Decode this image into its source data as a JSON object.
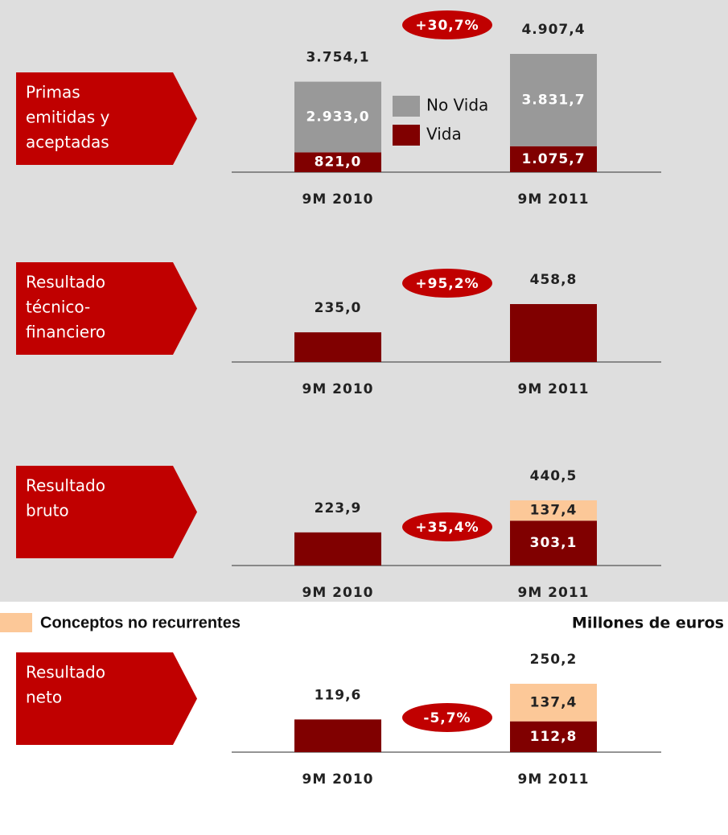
{
  "chart_data": [
    {
      "type": "bar",
      "stacked": true,
      "title": [
        "Primas",
        "emitidas y",
        "aceptadas"
      ],
      "categories": [
        "9M 2010",
        "9M 2011"
      ],
      "series": [
        {
          "name": "No Vida",
          "color": "#999999",
          "values": [
            2933.0,
            3831.7
          ],
          "value_labels": [
            "2.933,0",
            "3.831,7"
          ]
        },
        {
          "name": "Vida",
          "color": "#800000",
          "values": [
            821.0,
            1075.7
          ],
          "value_labels": [
            "821,0",
            "1.075,7"
          ]
        }
      ],
      "totals": [
        3754.1,
        4907.4
      ],
      "total_labels": [
        "3.754,1",
        "4.907,4"
      ],
      "change": 30.7,
      "change_label": "+30,7%"
    },
    {
      "type": "bar",
      "stacked": true,
      "title": [
        "Resultado",
        "técnico-",
        "financiero"
      ],
      "categories": [
        "9M 2010",
        "9M 2011"
      ],
      "series": [
        {
          "color": "#800000",
          "values": [
            235.0,
            458.8
          ],
          "value_labels": [
            "235,0",
            "458,8"
          ]
        }
      ],
      "change": 95.2,
      "change_label": "+95,2%"
    },
    {
      "type": "bar",
      "stacked": true,
      "title": [
        "Resultado",
        "bruto"
      ],
      "categories": [
        "9M 2010",
        "9M 2011"
      ],
      "series": [
        {
          "color": "#fcc898",
          "values": [
            null,
            137.4
          ],
          "value_labels": [
            null,
            "137,4"
          ]
        },
        {
          "color": "#800000",
          "values": [
            223.9,
            303.1
          ],
          "value_labels": [
            "223,9",
            "303,1"
          ]
        }
      ],
      "totals": [
        null,
        440.5
      ],
      "total_labels": [
        null,
        "440,5"
      ],
      "change": 35.4,
      "change_label": "+35,4%"
    },
    {
      "type": "bar",
      "stacked": true,
      "title": [
        "Resultado",
        "neto"
      ],
      "categories": [
        "9M 2010",
        "9M 2011"
      ],
      "series": [
        {
          "color": "#fcc898",
          "values": [
            null,
            137.4
          ],
          "value_labels": [
            null,
            "137,4"
          ]
        },
        {
          "color": "#800000",
          "values": [
            119.6,
            112.8
          ],
          "value_labels": [
            "119,6",
            "112,8"
          ]
        }
      ],
      "totals": [
        null,
        250.2
      ],
      "total_labels": [
        null,
        "250,2"
      ],
      "change": -5.7,
      "change_label": "-5,7%"
    }
  ],
  "footer": {
    "legend": "Conceptos no recurrentes",
    "legend_color": "#fcc898",
    "units": "Millones de euros"
  }
}
